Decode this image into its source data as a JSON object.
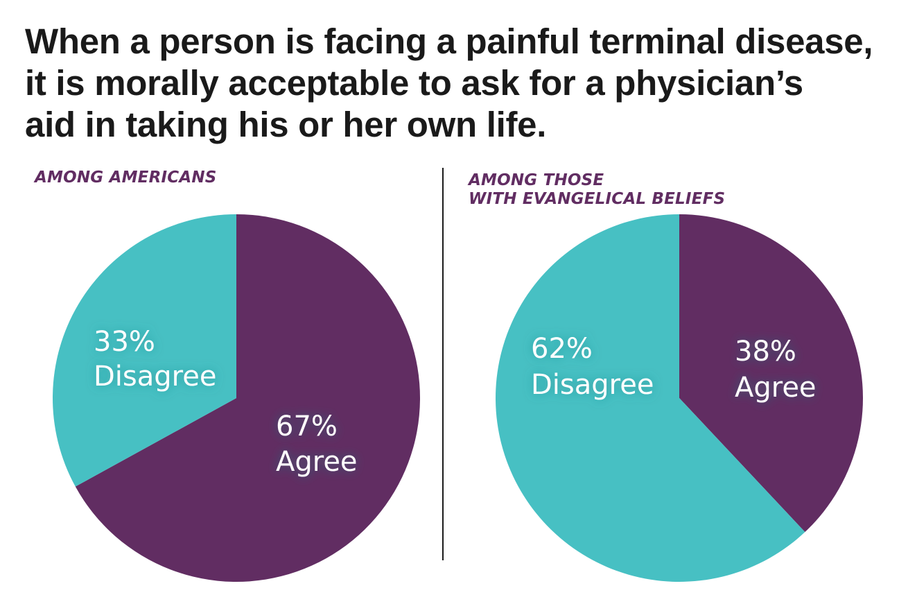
{
  "title": {
    "lines": [
      "When a person is facing a painful terminal disease,",
      "it is morally acceptable to ask for a physician’s",
      "aid in taking his or her own life."
    ]
  },
  "colors": {
    "agree": "#612d62",
    "disagree": "#47c0c3",
    "label": "#ffffff",
    "subtitle": "#612d62"
  },
  "chart_data": [
    {
      "type": "pie",
      "subtitle_lines": [
        "AMONG AMERICANS"
      ],
      "slices": [
        {
          "label": "Agree",
          "value": 67,
          "value_text": "67%",
          "color": "#612d62"
        },
        {
          "label": "Disagree",
          "value": 33,
          "value_text": "33%",
          "color": "#47c0c3"
        }
      ]
    },
    {
      "type": "pie",
      "subtitle_lines": [
        "AMONG THOSE",
        "WITH EVANGELICAL BELIEFS"
      ],
      "slices": [
        {
          "label": "Agree",
          "value": 38,
          "value_text": "38%",
          "color": "#612d62"
        },
        {
          "label": "Disagree",
          "value": 62,
          "value_text": "62%",
          "color": "#47c0c3"
        }
      ]
    }
  ]
}
